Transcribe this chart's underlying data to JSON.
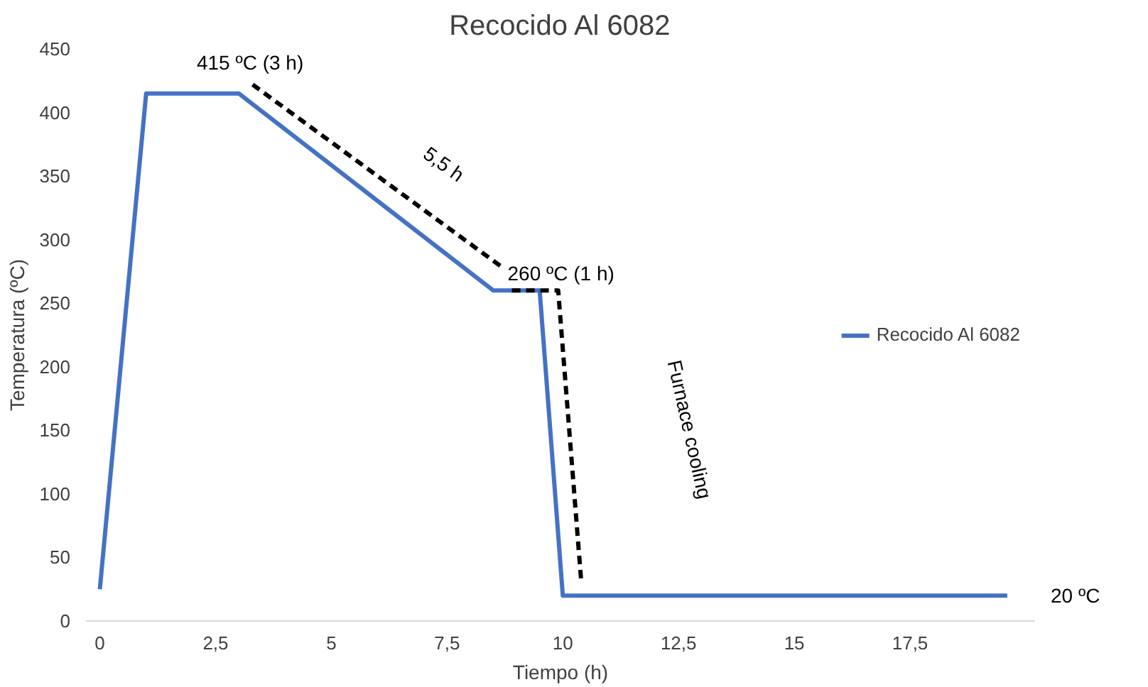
{
  "chart_data": {
    "type": "line",
    "title": "Recocido Al 6082",
    "xlabel": "Tiempo (h)",
    "ylabel": "Temperatura (ºC)",
    "xlim": [
      -0.3,
      20.2
    ],
    "ylim": [
      0,
      450
    ],
    "xticks": [
      0,
      {
        "value": 2.5,
        "label": "2,5"
      },
      5,
      {
        "value": 7.5,
        "label": "7,5"
      },
      10,
      {
        "value": 12.5,
        "label": "12,5"
      },
      15,
      {
        "value": 17.5,
        "label": "17,5"
      }
    ],
    "yticks": [
      0,
      50,
      100,
      150,
      200,
      250,
      300,
      350,
      400,
      450
    ],
    "grid": false,
    "legend": "right",
    "line_style": "solid",
    "marker": "none",
    "series": [
      {
        "name": "Recocido Al 6082",
        "color": "#4472c4",
        "x": [
          0,
          1,
          3,
          8.5,
          9.5,
          10,
          19.6
        ],
        "values": [
          25,
          415,
          415,
          260,
          260,
          20,
          20
        ]
      },
      {
        "color": "#000000",
        "line_style": "dashed",
        "x": [
          3.3,
          8.7
        ],
        "values": [
          422,
          278
        ]
      },
      {
        "color": "#000000",
        "line_style": "dashed",
        "x": [
          8.9,
          9.9,
          10.4
        ],
        "values": [
          260,
          260,
          30
        ]
      }
    ],
    "annotations": [
      {
        "text": "415 ºC (3 h)",
        "x": 3,
        "y": 415
      },
      "5,5 h",
      {
        "text": "260 ºC (1 h)",
        "x": 8.5,
        "y": 260
      },
      "Furnace cooling",
      {
        "text": "20 ºC",
        "x": 19.6,
        "y": 20
      }
    ]
  }
}
